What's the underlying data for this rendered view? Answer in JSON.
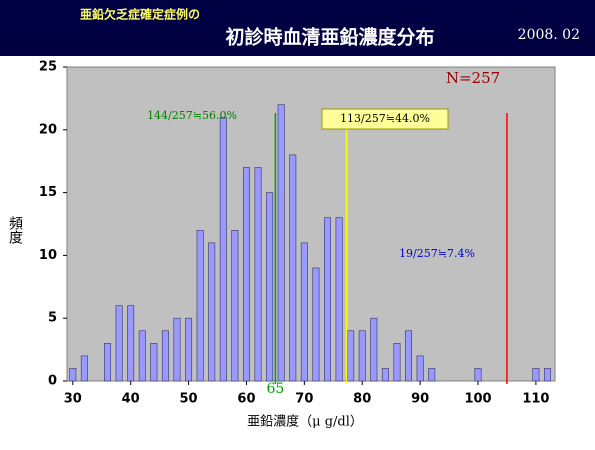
{
  "chart_data": {
    "type": "bar",
    "subtitle": "亜鉛欠乏症確定症例の",
    "title": "初診時血清亜鉛濃度分布",
    "date": "2008. 02",
    "x": [
      30,
      32,
      36,
      38,
      40,
      42,
      44,
      46,
      48,
      50,
      52,
      54,
      56,
      58,
      60,
      62,
      64,
      66,
      68,
      70,
      72,
      74,
      76,
      78,
      80,
      82,
      84,
      86,
      88,
      90,
      92,
      100,
      110,
      112
    ],
    "values": [
      1,
      2,
      3,
      6,
      6,
      4,
      3,
      4,
      5,
      5,
      12,
      11,
      21,
      12,
      17,
      17,
      15,
      22,
      18,
      11,
      9,
      13,
      13,
      4,
      4,
      5,
      1,
      3,
      4,
      2,
      1,
      1,
      1,
      1
    ],
    "color": "#9999ff",
    "xlim": [
      29,
      113.3
    ],
    "ylim": [
      0,
      25
    ],
    "xticks": [
      30,
      40,
      50,
      60,
      70,
      80,
      90,
      100,
      110
    ],
    "yticks": [
      0,
      5,
      10,
      15,
      20,
      25
    ],
    "xlabel": "亜鉛濃度（μ g/dl）",
    "ylabel": "頻度",
    "grid": false,
    "vlines": [
      {
        "value": 65,
        "color": "#00a000",
        "label": "65"
      },
      {
        "value": 77.3,
        "color": "#ffff00"
      },
      {
        "value": 105,
        "color": "#ff0000"
      }
    ],
    "annotations": [
      {
        "text": "144/257≒56.0%",
        "color": "#008000"
      },
      {
        "text": "113/257≒44.0%",
        "color": "#000000"
      },
      {
        "text": "19/257≒7.4%",
        "color": "#0000cc"
      },
      {
        "text": "N=257",
        "color": "#990000"
      }
    ]
  }
}
